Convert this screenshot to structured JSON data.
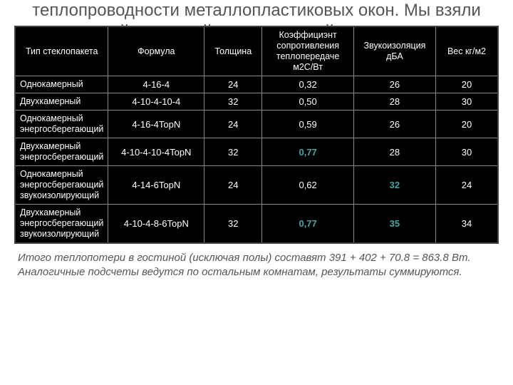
{
  "title": "теплопроводности металлопластиковых окон. Мы взяли самый скромный однокамерный стеклопакет",
  "table": {
    "headers": [
      "Тип стеклопакета",
      "Формула",
      "Толщина",
      "Коэффициэнт сопротивления теплопередаче м2С/Вт",
      "Звукоизоляция дБА",
      "Вес кг/м2"
    ],
    "rows": [
      {
        "type": "Однокамерный",
        "formula": "4-16-4",
        "thickness": "24",
        "coeff": "0,32",
        "sound": "26",
        "weight": "20",
        "hl_coeff": false,
        "hl_sound": false
      },
      {
        "type": "Двухкамерный",
        "formula": "4-10-4-10-4",
        "thickness": "32",
        "coeff": "0,50",
        "sound": "28",
        "weight": "30",
        "hl_coeff": false,
        "hl_sound": false
      },
      {
        "type": "Однокамерный энергосберегающий",
        "formula": "4-16-4TopN",
        "thickness": "24",
        "coeff": "0,59",
        "sound": "26",
        "weight": "20",
        "hl_coeff": false,
        "hl_sound": false
      },
      {
        "type": "Двухкамерный энергосберегающий",
        "formula": "4-10-4-10-4TopN",
        "thickness": "32",
        "coeff": "0,77",
        "sound": "28",
        "weight": "30",
        "hl_coeff": true,
        "hl_sound": false
      },
      {
        "type": "Однокамерный энергосберегающий звукоизолирующий",
        "formula": "4-14-6TopN",
        "thickness": "24",
        "coeff": "0,62",
        "sound": "32",
        "weight": "24",
        "hl_coeff": false,
        "hl_sound": true
      },
      {
        "type": "Двухкамерный энергосберегающий звукоизолирующий",
        "formula": "4-10-4-8-6TopN",
        "thickness": "32",
        "coeff": "0,77",
        "sound": "35",
        "weight": "34",
        "hl_coeff": true,
        "hl_sound": true
      }
    ]
  },
  "footnote": "Итого теплопотери в гостиной (исключая полы) составят 391 + 402 + 70.8 = 863.8 Вт. Аналогичные подсчеты ведутся по остальным комнатам, результаты суммируются."
}
